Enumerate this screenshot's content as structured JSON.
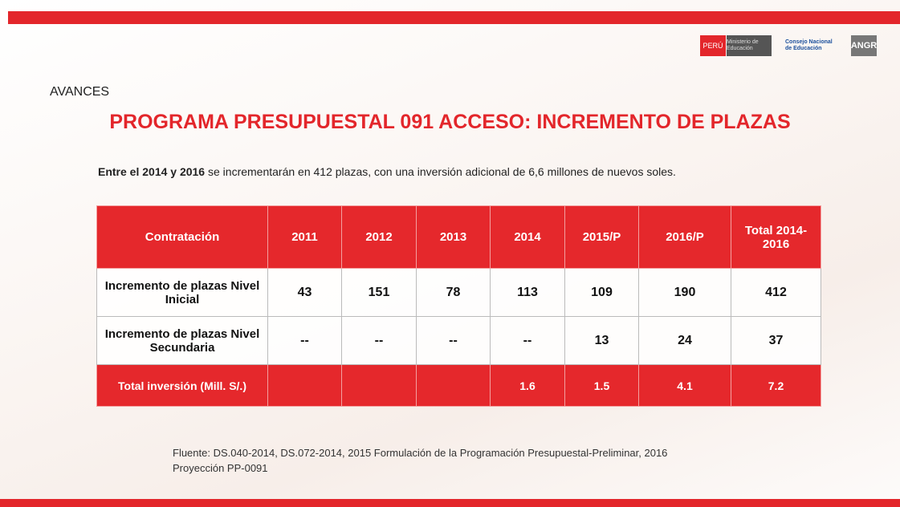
{
  "header": {
    "logos": [
      "PERÚ",
      "Ministerio de Educación",
      "Consejo Nacional de Educación",
      "ANGR"
    ],
    "section": "AVANCES",
    "title": "PROGRAMA PRESUPUESTAL 091 ACCESO: INCREMENTO DE PLAZAS"
  },
  "intro": {
    "bold": "Entre el 2014 y 2016",
    "text": "se incrementarán en 412 plazas, con una inversión adicional de 6,6 millones de nuevos soles."
  },
  "table": {
    "columns": [
      "Contratación",
      "2011",
      "2012",
      "2013",
      "2014",
      "2015/P",
      "2016/P",
      "Total 2014-2016"
    ],
    "rows": [
      {
        "label": "Incremento de plazas Nivel Inicial",
        "values": [
          43,
          151,
          78,
          113,
          109,
          190,
          412
        ]
      },
      {
        "label": "Incremento de plazas Nivel Secundaria",
        "values": [
          "--",
          "--",
          "--",
          "--",
          13,
          24,
          37
        ]
      }
    ],
    "total_row": {
      "label": "Total inversión (Mill. S/.)",
      "values": [
        1.6,
        1.5,
        4.1,
        7.2
      ]
    }
  },
  "footer": {
    "source": [
      "Fluente: DS.040-2014, DS.072-2014, 2015 Formulación de la Programación Presupuestal-Preliminar, 2016",
      "Proyección PP-0091"
    ]
  }
}
